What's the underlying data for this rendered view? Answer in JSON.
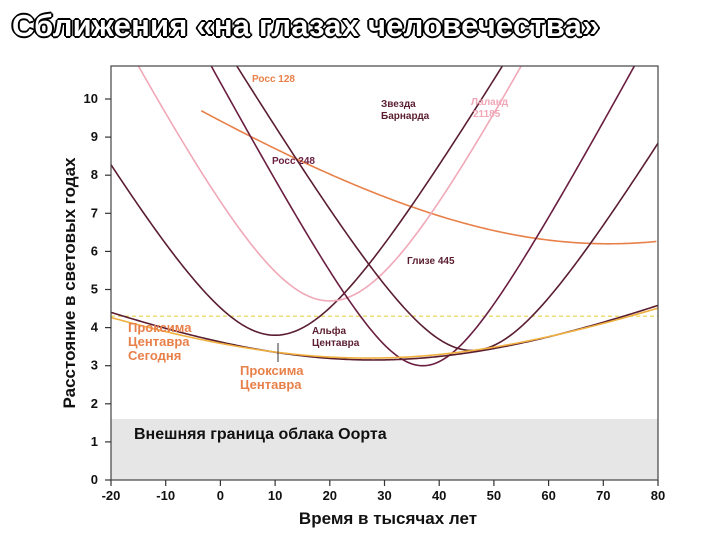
{
  "title": "Сближения «на глазах человечества»",
  "chart_data": {
    "type": "line",
    "xlabel": "Время в тысячах лет",
    "ylabel": "Расстояние в световых годах",
    "xlim": [
      -20,
      80
    ],
    "ylim": [
      0,
      11
    ],
    "x_ticks": [
      -20,
      -10,
      0,
      10,
      20,
      30,
      40,
      50,
      60,
      70,
      80
    ],
    "y_ticks": [
      0,
      1,
      2,
      3,
      4,
      5,
      6,
      7,
      8,
      9,
      10
    ],
    "grid": false,
    "oort_cloud": {
      "label": "Внешняя граница облака Оорта",
      "upper": 1.6,
      "color": "#e6e6e6"
    },
    "reference_line": {
      "y": 4.3,
      "color": "#e6d44a",
      "style": "dashed"
    },
    "series": [
      {
        "name": "Росс 128",
        "color": "#e8804a",
        "x_min_bound": -3.5,
        "x0": 71,
        "ymin": 6.2,
        "v": 0.1
      },
      {
        "name": "Звезда Барнарда",
        "color": "#5a1e30",
        "x_min_bound": -20,
        "x0": 10,
        "ymin": 3.8,
        "v": 0.245
      },
      {
        "name": "Лаланд 21185",
        "color": "#f0a8b8",
        "x_min_bound": -20,
        "x0": 20,
        "ymin": 4.7,
        "v": 0.28
      },
      {
        "name": "Росс 248",
        "color": "#6a1e40",
        "x_min_bound": -20,
        "x0": 37,
        "ymin": 3.0,
        "v": 0.27
      },
      {
        "name": "Глизе 445",
        "color": "#5a1e30",
        "x_min_bound": -20,
        "x0": 46,
        "ymin": 3.4,
        "v": 0.24
      },
      {
        "name": "Альфа Центавра",
        "color": "#5a1e30",
        "x_min_bound": -20,
        "x0": 28,
        "ymin": 3.15,
        "v": 0.064
      },
      {
        "name": "Проксима Центавра",
        "color": "#f0b040",
        "x_min_bound": -20,
        "x0": 27,
        "ymin": 3.2,
        "v": 0.06
      }
    ],
    "annotations": {
      "ross128": "Росс 128",
      "barnard_1": "Звезда",
      "barnard_2": "Барнарда",
      "lalande_1": "Лаланд",
      "lalande_2": "21185",
      "ross248": "Росс 248",
      "gliese445": "Глизе 445",
      "alpha_1": "Альфа",
      "alpha_2": "Центавра",
      "prox_today_1": "Проксима",
      "prox_today_2": "Центавра",
      "prox_today_3": "Сегодня",
      "prox_min_1": "Проксима",
      "prox_min_2": "Центавра"
    }
  }
}
